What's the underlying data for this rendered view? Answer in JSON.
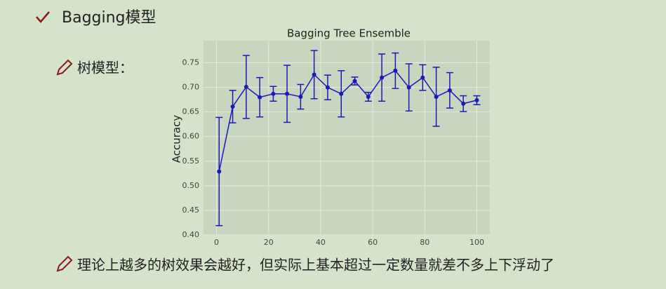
{
  "heading": "Bagging模型",
  "bullet_1": "树模型：",
  "bullet_2": "理论上越多的树效果会越好，但实际上基本超过一定数量就差不多上下浮动了",
  "chart_data": {
    "type": "errorbar",
    "title": "Bagging Tree Ensemble",
    "y_label": "Accuracy",
    "x": [
      1,
      6.2,
      11.4,
      16.6,
      21.8,
      27.1,
      32.3,
      37.5,
      42.7,
      47.9,
      53.1,
      58.3,
      63.5,
      68.7,
      73.9,
      79.2,
      84.4,
      89.6,
      94.8,
      100
    ],
    "series": [
      {
        "color": "#1a1ab8",
        "values": [
          0.529,
          0.661,
          0.701,
          0.68,
          0.687,
          0.687,
          0.681,
          0.726,
          0.7,
          0.687,
          0.713,
          0.681,
          0.72,
          0.734,
          0.7,
          0.72,
          0.681,
          0.694,
          0.667,
          0.674
        ],
        "errors": [
          0.11,
          0.033,
          0.064,
          0.04,
          0.015,
          0.058,
          0.025,
          0.049,
          0.025,
          0.047,
          0.008,
          0.009,
          0.048,
          0.036,
          0.048,
          0.026,
          0.06,
          0.036,
          0.016,
          0.009
        ]
      }
    ],
    "xlim": [
      -5,
      105
    ],
    "ylim": [
      0.4,
      0.795
    ],
    "xticks": [
      0,
      20,
      40,
      60,
      80,
      100
    ],
    "yticks": [
      {
        "value": 0.4,
        "label": "0.40"
      },
      {
        "value": 0.45,
        "label": "0.45"
      },
      {
        "value": 0.5,
        "label": "0.50"
      },
      {
        "value": 0.55,
        "label": "0.55"
      },
      {
        "value": 0.6,
        "label": "0.60"
      },
      {
        "value": 0.65,
        "label": "0.65"
      },
      {
        "value": 0.7,
        "label": "0.70"
      },
      {
        "value": 0.75,
        "label": "0.75"
      }
    ],
    "grid": true
  }
}
